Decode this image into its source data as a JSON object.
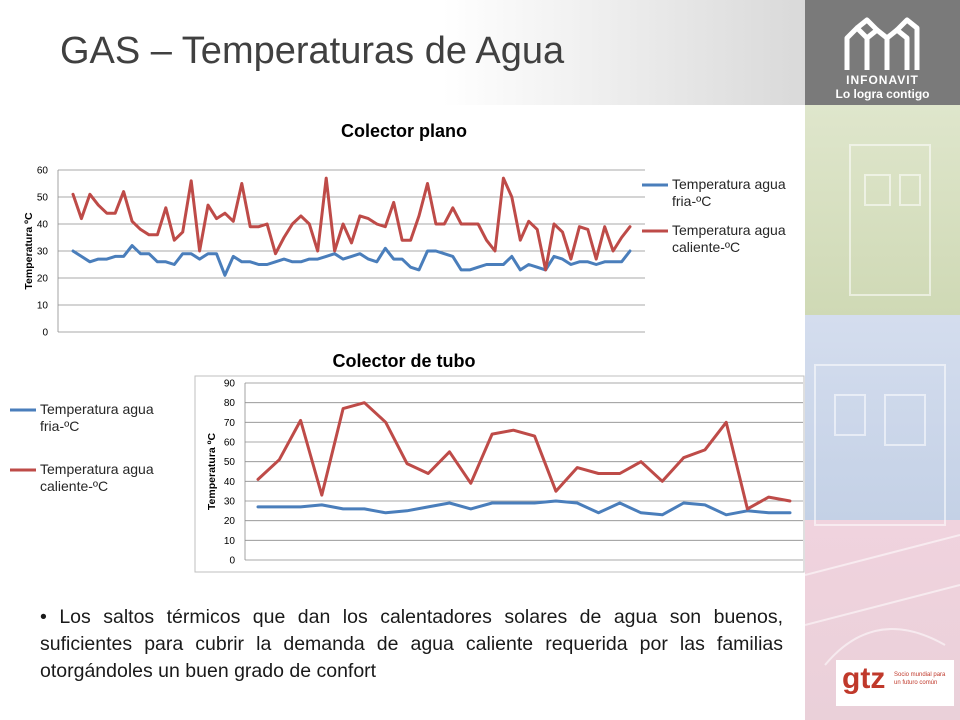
{
  "slide": {
    "title": "GAS – Temperaturas de Agua",
    "bullet": "Los saltos térmicos que dan los calentadores solares de agua son buenos, suficientes para cubrir la demanda de agua caliente requerida por las familias otorgándoles un buen grado de confort"
  },
  "logo": {
    "name": "INFONAVIT",
    "tagline": "Lo logra contigo",
    "icon": "infonavit-houses-logo"
  },
  "footer_logo": {
    "name": "gtz",
    "sub1": "Socio mundial para",
    "sub2": "un futuro común"
  },
  "colors": {
    "series_fria": "#4a7ebb",
    "series_caliente": "#be4b48",
    "title_text": "#404040",
    "logo_bg": "#7a7a7a",
    "gtz_red": "#c0392b"
  },
  "chart_data": [
    {
      "type": "line",
      "title": "Colector plano",
      "ylabel": "Temperatura ºC",
      "xlabel": "",
      "ylim": [
        0,
        60
      ],
      "yticks": [
        "0",
        "10",
        "20",
        "30",
        "40",
        "50",
        "60"
      ],
      "grid": true,
      "legend_position": "right",
      "series": [
        {
          "name": "Temperatura agua fria-ºC",
          "color": "#4a7ebb",
          "values": [
            30,
            28,
            26,
            27,
            27,
            28,
            28,
            32,
            29,
            29,
            26,
            26,
            25,
            29,
            29,
            27,
            29,
            29,
            21,
            28,
            26,
            26,
            25,
            25,
            26,
            27,
            26,
            26,
            27,
            27,
            28,
            29,
            27,
            28,
            29,
            27,
            26,
            31,
            27,
            27,
            24,
            23,
            30,
            30,
            29,
            28,
            23,
            23,
            24,
            25,
            25,
            25,
            28,
            23,
            25,
            24,
            23,
            28,
            27,
            25,
            26,
            26,
            25,
            26,
            26,
            26,
            30
          ]
        },
        {
          "name": "Temperatura agua caliente-ºC",
          "color": "#be4b48",
          "values": [
            51,
            42,
            51,
            47,
            44,
            44,
            52,
            41,
            38,
            36,
            36,
            46,
            34,
            37,
            56,
            30,
            47,
            42,
            44,
            41,
            55,
            39,
            39,
            40,
            29,
            35,
            40,
            43,
            40,
            30,
            57,
            30,
            40,
            33,
            43,
            42,
            40,
            39,
            48,
            34,
            34,
            43,
            55,
            40,
            40,
            46,
            40,
            40,
            40,
            34,
            30,
            57,
            50,
            34,
            41,
            38,
            23,
            40,
            37,
            27,
            39,
            38,
            27,
            39,
            30,
            35,
            39
          ]
        }
      ]
    },
    {
      "type": "line",
      "title": "Colector de tubo",
      "ylabel": "Temperatura ºC",
      "xlabel": "",
      "ylim": [
        0,
        90
      ],
      "yticks": [
        "0",
        "10",
        "20",
        "30",
        "40",
        "50",
        "60",
        "70",
        "80",
        "90"
      ],
      "grid": true,
      "legend_position": "left",
      "series": [
        {
          "name": "Temperatura agua fria-ºC",
          "color": "#4a7ebb",
          "values": [
            27,
            27,
            27,
            28,
            26,
            26,
            24,
            25,
            27,
            29,
            26,
            29,
            29,
            29,
            30,
            29,
            24,
            29,
            24,
            23,
            29,
            28,
            23,
            25,
            24,
            24
          ]
        },
        {
          "name": "Temperatura agua caliente-ºC",
          "color": "#be4b48",
          "values": [
            41,
            51,
            71,
            33,
            77,
            80,
            70,
            49,
            44,
            55,
            39,
            64,
            66,
            63,
            35,
            47,
            44,
            44,
            50,
            40,
            52,
            56,
            70,
            26,
            32,
            30
          ]
        }
      ]
    }
  ]
}
